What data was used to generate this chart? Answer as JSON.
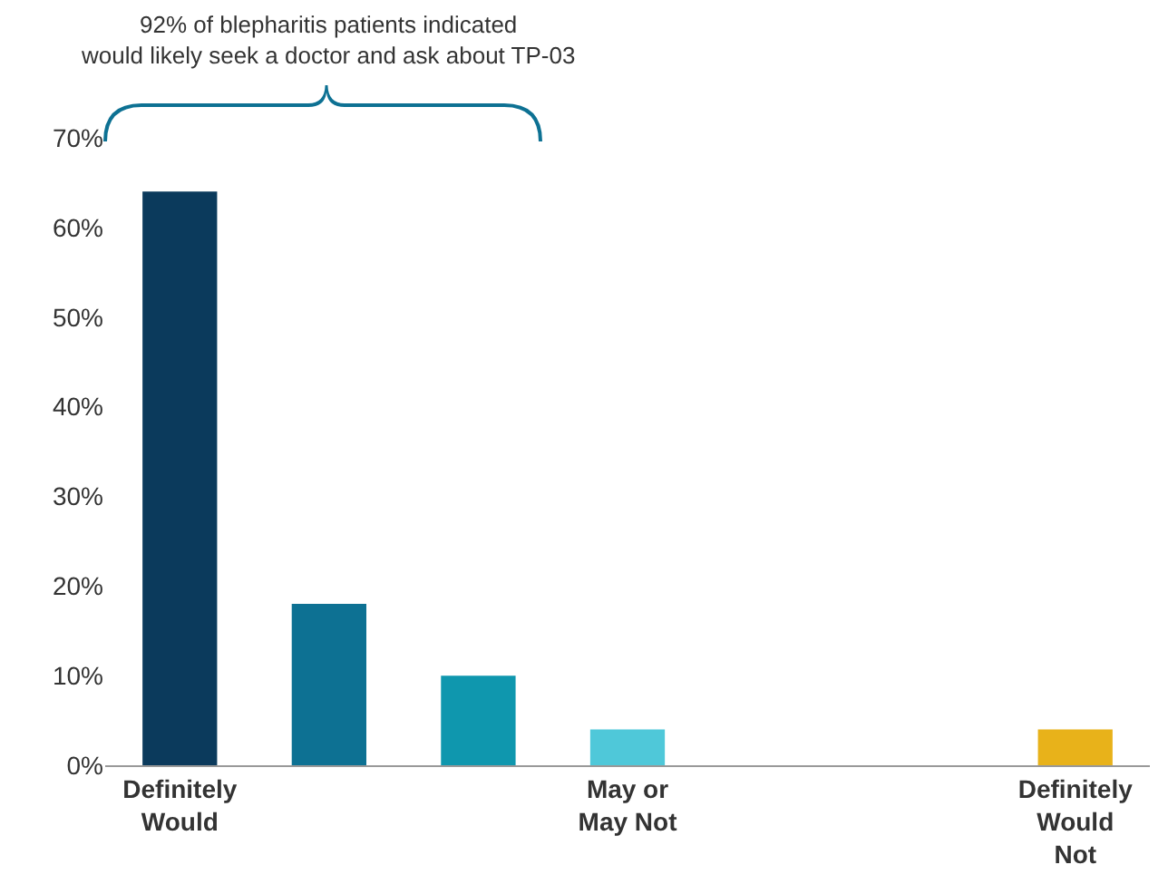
{
  "chart_data": {
    "type": "bar",
    "categories": [
      "Definitely Would",
      null,
      null,
      "May or May Not",
      null,
      null,
      "Definitely Would Not"
    ],
    "values": [
      64,
      18,
      10,
      4,
      null,
      null,
      4
    ],
    "colors": [
      "#0b3a5c",
      "#0d7193",
      "#0f97ae",
      "#4fc8d9",
      "#4fc8d9",
      "#4fc8d9",
      "#e8b21a"
    ],
    "ylim": [
      0,
      70
    ],
    "yticks": [
      {
        "value": 0,
        "label": "0%"
      },
      {
        "value": 10,
        "label": "10%"
      },
      {
        "value": 20,
        "label": "20%"
      },
      {
        "value": 30,
        "label": "30%"
      },
      {
        "value": 40,
        "label": "40%"
      },
      {
        "value": 50,
        "label": "50%"
      },
      {
        "value": 60,
        "label": "60%"
      },
      {
        "value": 70,
        "label": "70%"
      }
    ],
    "grid": false,
    "annotations": [
      "92% of blepharitis patients indicated\nwould likely seek a doctor and ask about TP-03"
    ]
  }
}
